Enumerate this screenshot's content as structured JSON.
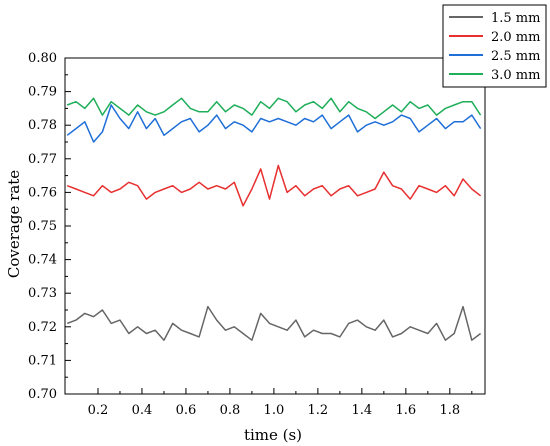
{
  "chart_data": {
    "type": "line",
    "title": "",
    "xlabel": "time (s)",
    "ylabel": "Coverage rate",
    "xlim": [
      0.05,
      1.96
    ],
    "ylim": [
      0.7,
      0.8
    ],
    "grid": false,
    "legend_position": "top-right",
    "x_ticks": [
      "0.2",
      "0.4",
      "0.6",
      "0.8",
      "1.0",
      "1.2",
      "1.4",
      "1.6",
      "1.8"
    ],
    "y_ticks": [
      "0.70",
      "0.71",
      "0.72",
      "0.73",
      "0.74",
      "0.75",
      "0.76",
      "0.77",
      "0.78",
      "0.79",
      "0.80"
    ],
    "x": [
      0.06,
      0.1,
      0.14,
      0.18,
      0.22,
      0.26,
      0.3,
      0.34,
      0.38,
      0.42,
      0.46,
      0.5,
      0.54,
      0.58,
      0.62,
      0.66,
      0.7,
      0.74,
      0.78,
      0.82,
      0.86,
      0.9,
      0.94,
      0.98,
      1.02,
      1.06,
      1.1,
      1.14,
      1.18,
      1.22,
      1.26,
      1.3,
      1.34,
      1.38,
      1.42,
      1.46,
      1.5,
      1.54,
      1.58,
      1.62,
      1.66,
      1.7,
      1.74,
      1.78,
      1.82,
      1.86,
      1.9,
      1.94
    ],
    "series": [
      {
        "name": "1.5 mm",
        "color": "#666666",
        "values": [
          0.721,
          0.722,
          0.724,
          0.723,
          0.725,
          0.721,
          0.722,
          0.718,
          0.72,
          0.718,
          0.719,
          0.716,
          0.721,
          0.719,
          0.718,
          0.717,
          0.726,
          0.722,
          0.719,
          0.72,
          0.718,
          0.716,
          0.724,
          0.721,
          0.72,
          0.719,
          0.722,
          0.717,
          0.719,
          0.718,
          0.718,
          0.717,
          0.721,
          0.722,
          0.72,
          0.719,
          0.722,
          0.717,
          0.718,
          0.72,
          0.719,
          0.718,
          0.721,
          0.716,
          0.718,
          0.726,
          0.716,
          0.718
        ]
      },
      {
        "name": "2.0 mm",
        "color": "#e83030",
        "values": [
          0.762,
          0.761,
          0.76,
          0.759,
          0.762,
          0.76,
          0.761,
          0.763,
          0.762,
          0.758,
          0.76,
          0.761,
          0.762,
          0.76,
          0.761,
          0.763,
          0.761,
          0.762,
          0.761,
          0.763,
          0.756,
          0.761,
          0.767,
          0.758,
          0.768,
          0.76,
          0.762,
          0.759,
          0.761,
          0.762,
          0.759,
          0.761,
          0.762,
          0.759,
          0.76,
          0.761,
          0.766,
          0.762,
          0.761,
          0.758,
          0.762,
          0.761,
          0.76,
          0.762,
          0.759,
          0.764,
          0.761,
          0.759
        ]
      },
      {
        "name": "2.5 mm",
        "color": "#1f6fd8",
        "values": [
          0.777,
          0.779,
          0.781,
          0.775,
          0.778,
          0.786,
          0.782,
          0.779,
          0.784,
          0.779,
          0.782,
          0.777,
          0.779,
          0.781,
          0.782,
          0.778,
          0.78,
          0.783,
          0.779,
          0.781,
          0.78,
          0.778,
          0.782,
          0.781,
          0.782,
          0.781,
          0.78,
          0.782,
          0.781,
          0.783,
          0.779,
          0.781,
          0.783,
          0.778,
          0.78,
          0.781,
          0.78,
          0.781,
          0.783,
          0.782,
          0.778,
          0.78,
          0.782,
          0.779,
          0.781,
          0.781,
          0.783,
          0.779
        ]
      },
      {
        "name": "3.0 mm",
        "color": "#1fae5a",
        "values": [
          0.786,
          0.787,
          0.785,
          0.788,
          0.783,
          0.787,
          0.785,
          0.783,
          0.786,
          0.784,
          0.783,
          0.784,
          0.786,
          0.788,
          0.785,
          0.784,
          0.784,
          0.787,
          0.784,
          0.786,
          0.785,
          0.783,
          0.787,
          0.785,
          0.788,
          0.787,
          0.784,
          0.786,
          0.787,
          0.785,
          0.788,
          0.784,
          0.787,
          0.785,
          0.784,
          0.782,
          0.784,
          0.786,
          0.784,
          0.787,
          0.785,
          0.786,
          0.783,
          0.785,
          0.786,
          0.787,
          0.787,
          0.783
        ]
      }
    ]
  }
}
